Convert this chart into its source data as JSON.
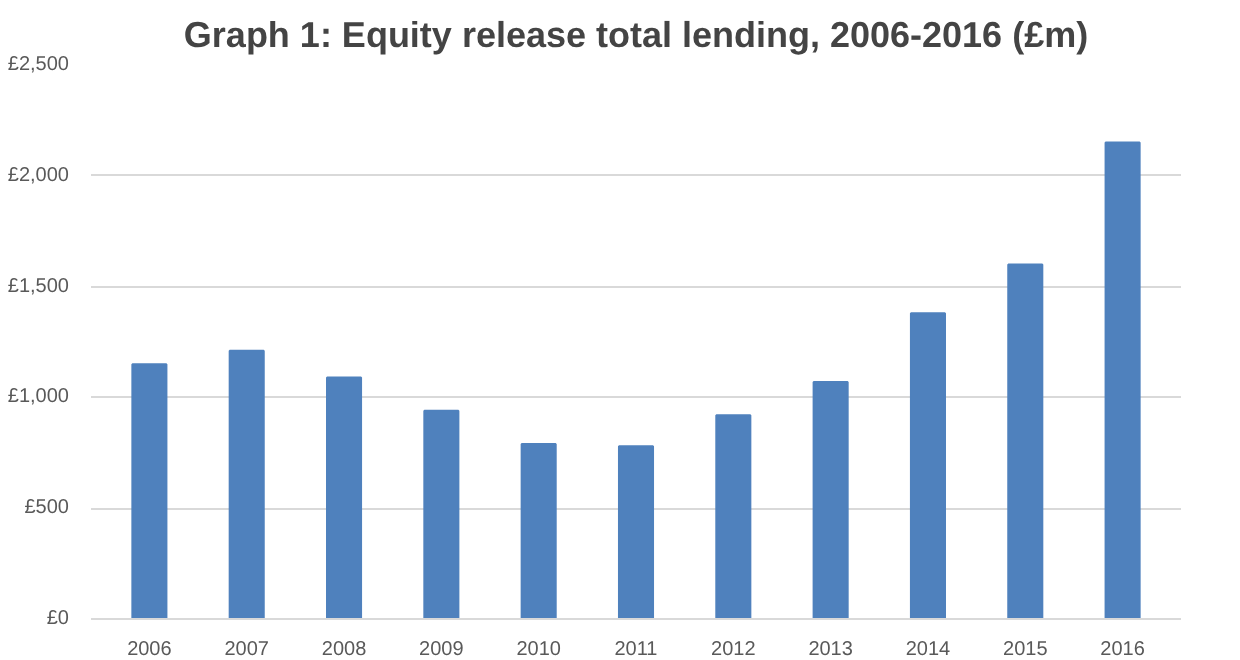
{
  "chart_data": {
    "type": "bar",
    "title": "Graph 1: Equity release total lending, 2006-2016 (£m)",
    "categories": [
      "2006",
      "2007",
      "2008",
      "2009",
      "2010",
      "2011",
      "2012",
      "2013",
      "2014",
      "2015",
      "2016"
    ],
    "values": [
      1150,
      1210,
      1090,
      940,
      790,
      780,
      920,
      1070,
      1380,
      1600,
      2150
    ],
    "color": "#4f81bd",
    "ylim": [
      0,
      2500
    ],
    "yticks": [
      {
        "value": 0,
        "label": "£0"
      },
      {
        "value": 500,
        "label": "£500"
      },
      {
        "value": 1000,
        "label": "£1,000"
      },
      {
        "value": 1500,
        "label": "£1,500"
      },
      {
        "value": 2000,
        "label": "£2,000"
      },
      {
        "value": 2500,
        "label": "£2,500"
      }
    ],
    "grid": "y"
  }
}
